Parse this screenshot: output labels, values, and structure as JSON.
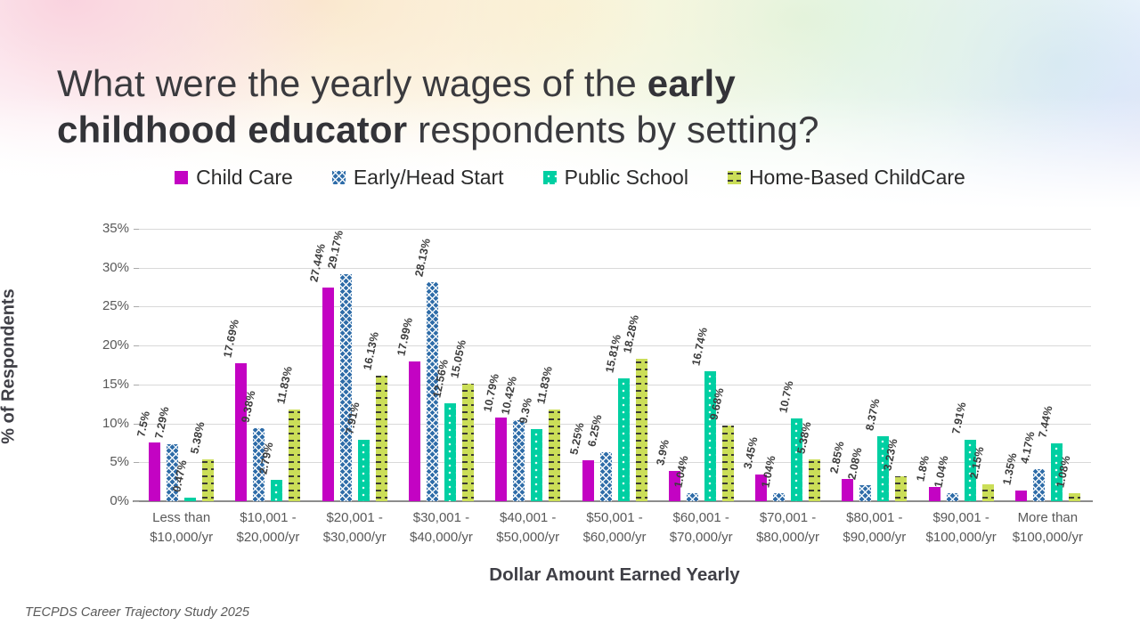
{
  "title": {
    "line1_normal": "What were the yearly wages of the ",
    "line1_bold": "early",
    "line2_bold": "childhood educator",
    "line2_normal": " respondents by setting?"
  },
  "footer": {
    "source": "TECPDS Career Trajectory Study 2025"
  },
  "colors": {
    "child_care": "#c303c3",
    "early_head_start": "#2e6ca8",
    "public_school": "#00cfa2",
    "home_based_childcare": "#cbde58",
    "gridline": "#d9d9d9",
    "axis_line": "#8c8c8c",
    "text_dark": "#3a3a3e",
    "text_muted": "#595959"
  },
  "chart_data": {
    "type": "bar",
    "title": "",
    "xlabel": "Dollar Amount Earned Yearly",
    "ylabel": "% of Respondents",
    "ylim": [
      0,
      35
    ],
    "ytick_step": 5,
    "ytick_labels": [
      "0%",
      "5%",
      "10%",
      "15%",
      "20%",
      "25%",
      "30%",
      "35%"
    ],
    "grid": true,
    "legend_position": "top",
    "categories": [
      "Less than\n$10,000/yr",
      "$10,001 -\n$20,000/yr",
      "$20,001 -\n$30,000/yr",
      "$30,001 -\n$40,000/yr",
      "$40,001 -\n$50,000/yr",
      "$50,001 -\n$60,000/yr",
      "$60,001 -\n$70,000/yr",
      "$70,001 -\n$80,000/yr",
      "$80,001 -\n$90,000/yr",
      "$90,001 -\n$100,000/yr",
      "More than\n$100,000/yr"
    ],
    "series": [
      {
        "name": "Child Care",
        "pattern": "solid",
        "color": "#c303c3",
        "values": [
          7.5,
          17.69,
          27.44,
          17.99,
          10.79,
          5.25,
          3.9,
          3.45,
          2.85,
          1.8,
          1.35
        ],
        "labels": [
          "7.5%",
          "17.69%",
          "27.44%",
          "17.99%",
          "10.79%",
          "5.25%",
          "3.9%",
          "3.45%",
          "2.85%",
          "1.8%",
          "1.35%"
        ]
      },
      {
        "name": "Early/Head Start",
        "pattern": "crosshatch",
        "color": "#2e6ca8",
        "values": [
          7.29,
          9.38,
          29.17,
          28.13,
          10.42,
          6.25,
          1.04,
          1.04,
          2.08,
          1.04,
          4.17
        ],
        "labels": [
          "7.29%",
          "9.38%",
          "29.17%",
          "28.13%",
          "10.42%",
          "6.25%",
          "1.04%",
          "1.04%",
          "2.08%",
          "1.04%",
          "4.17%"
        ]
      },
      {
        "name": "Public School",
        "pattern": "dots",
        "color": "#00cfa2",
        "values": [
          0.47,
          2.79,
          7.91,
          12.56,
          9.3,
          15.81,
          16.74,
          10.7,
          8.37,
          7.91,
          7.44
        ],
        "labels": [
          "0.47%",
          "2.79%",
          "7.91%",
          "12.56%",
          "9.3%",
          "15.81%",
          "16.74%",
          "10.7%",
          "8.37%",
          "7.91%",
          "7.44%"
        ]
      },
      {
        "name": "Home-Based ChildCare",
        "pattern": "dashes",
        "color": "#cbde58",
        "values": [
          5.38,
          11.83,
          16.13,
          15.05,
          11.83,
          18.28,
          9.68,
          5.38,
          3.23,
          2.15,
          1.08
        ],
        "labels": [
          "5.38%",
          "11.83%",
          "16.13%",
          "15.05%",
          "11.83%",
          "18.28%",
          "9.68%",
          "5.38%",
          "3.23%",
          "2.15%",
          "1.08%"
        ]
      }
    ]
  }
}
